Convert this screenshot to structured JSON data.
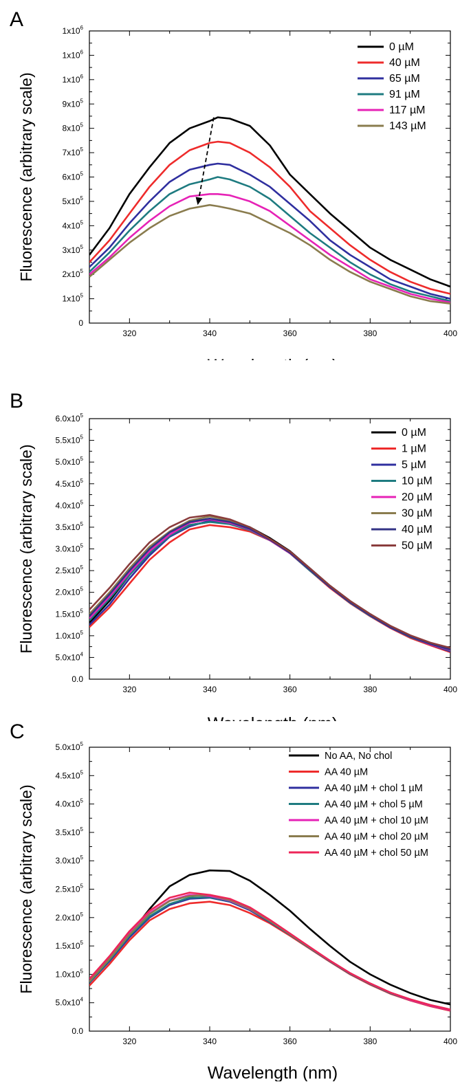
{
  "colors": {
    "black": "#000000",
    "red": "#ee2b2b",
    "blue": "#2f2f9f",
    "teal": "#1e7b80",
    "magenta": "#e622b6",
    "olive": "#8a7c4e",
    "navy": "#333385",
    "brown": "#8a3c3c",
    "crimson": "#ee2558"
  },
  "chart_data": [
    {
      "panel": "A",
      "type": "line",
      "xlabel": "Wavelength (nm)",
      "ylabel": "Fluorescence (arbitrary scale)",
      "xlim": [
        310,
        400
      ],
      "ylim": [
        0,
        1200000
      ],
      "xticks": [
        320,
        340,
        360,
        380,
        400
      ],
      "yticks": [
        {
          "value": 0,
          "mant": "0",
          "exp": ""
        },
        {
          "value": 100000,
          "mant": "1x10",
          "exp": "5"
        },
        {
          "value": 200000,
          "mant": "2x10",
          "exp": "5"
        },
        {
          "value": 300000,
          "mant": "3x10",
          "exp": "5"
        },
        {
          "value": 400000,
          "mant": "4x10",
          "exp": "5"
        },
        {
          "value": 500000,
          "mant": "5x10",
          "exp": "5"
        },
        {
          "value": 600000,
          "mant": "6x10",
          "exp": "5"
        },
        {
          "value": 700000,
          "mant": "7x10",
          "exp": "5"
        },
        {
          "value": 800000,
          "mant": "8x10",
          "exp": "5"
        },
        {
          "value": 900000,
          "mant": "9x10",
          "exp": "5"
        },
        {
          "value": 1000000,
          "mant": "1x10",
          "exp": "6"
        },
        {
          "value": 1100000,
          "mant": "1x10",
          "exp": "6"
        },
        {
          "value": 1200000,
          "mant": "1x10",
          "exp": "6"
        }
      ],
      "legend_position": "top-right",
      "annotation": {
        "type": "dashed-arrow",
        "from": [
          341,
          845000
        ],
        "to": [
          337,
          485000
        ]
      },
      "x": [
        310,
        315,
        320,
        325,
        330,
        335,
        340,
        342,
        345,
        350,
        355,
        360,
        365,
        370,
        375,
        380,
        385,
        390,
        395,
        400
      ],
      "series": [
        {
          "name": "0 µM",
          "color": "black",
          "values": [
            280000,
            390000,
            530000,
            640000,
            740000,
            800000,
            830000,
            845000,
            840000,
            810000,
            730000,
            610000,
            530000,
            450000,
            380000,
            310000,
            260000,
            220000,
            180000,
            150000
          ]
        },
        {
          "name": "40 µM",
          "color": "red",
          "values": [
            250000,
            340000,
            450000,
            560000,
            650000,
            710000,
            740000,
            745000,
            740000,
            700000,
            640000,
            560000,
            460000,
            390000,
            320000,
            260000,
            210000,
            170000,
            140000,
            120000
          ]
        },
        {
          "name": "65 µM",
          "color": "blue",
          "values": [
            230000,
            310000,
            410000,
            500000,
            580000,
            630000,
            650000,
            655000,
            650000,
            610000,
            560000,
            490000,
            420000,
            340000,
            280000,
            230000,
            180000,
            150000,
            120000,
            100000
          ]
        },
        {
          "name": "91 µM",
          "color": "teal",
          "values": [
            210000,
            290000,
            380000,
            460000,
            530000,
            570000,
            590000,
            600000,
            590000,
            560000,
            510000,
            440000,
            370000,
            310000,
            250000,
            200000,
            160000,
            130000,
            110000,
            90000
          ]
        },
        {
          "name": "117 µM",
          "color": "magenta",
          "values": [
            200000,
            270000,
            350000,
            420000,
            480000,
            520000,
            530000,
            530000,
            525000,
            500000,
            460000,
            400000,
            340000,
            280000,
            230000,
            180000,
            150000,
            120000,
            100000,
            85000
          ]
        },
        {
          "name": "143 µM",
          "color": "olive",
          "values": [
            190000,
            260000,
            330000,
            390000,
            440000,
            470000,
            485000,
            480000,
            470000,
            450000,
            410000,
            370000,
            320000,
            260000,
            210000,
            170000,
            140000,
            110000,
            90000,
            80000
          ]
        }
      ]
    },
    {
      "panel": "B",
      "type": "line",
      "xlabel": "Wavelength (nm)",
      "ylabel": "Fluorescence (arbitrary scale)",
      "xlim": [
        310,
        400
      ],
      "ylim": [
        0,
        600000
      ],
      "xticks": [
        320,
        340,
        360,
        380,
        400
      ],
      "yticks": [
        {
          "value": 0,
          "mant": "0.0",
          "exp": ""
        },
        {
          "value": 50000,
          "mant": "5.0x10",
          "exp": "4"
        },
        {
          "value": 100000,
          "mant": "1.0x10",
          "exp": "5"
        },
        {
          "value": 150000,
          "mant": "1.5x10",
          "exp": "5"
        },
        {
          "value": 200000,
          "mant": "2.0x10",
          "exp": "5"
        },
        {
          "value": 250000,
          "mant": "2.5x10",
          "exp": "5"
        },
        {
          "value": 300000,
          "mant": "3.0x10",
          "exp": "5"
        },
        {
          "value": 350000,
          "mant": "3.5x10",
          "exp": "5"
        },
        {
          "value": 400000,
          "mant": "4.0x10",
          "exp": "5"
        },
        {
          "value": 450000,
          "mant": "4.5x10",
          "exp": "5"
        },
        {
          "value": 500000,
          "mant": "5.0x10",
          "exp": "5"
        },
        {
          "value": 550000,
          "mant": "5.5x10",
          "exp": "5"
        },
        {
          "value": 600000,
          "mant": "6.0x10",
          "exp": "5"
        }
      ],
      "legend_position": "top-right",
      "x": [
        310,
        315,
        320,
        325,
        330,
        335,
        340,
        345,
        350,
        355,
        360,
        365,
        370,
        375,
        380,
        385,
        390,
        395,
        400
      ],
      "series": [
        {
          "name": "0 µM",
          "color": "black",
          "values": [
            130000,
            180000,
            240000,
            290000,
            330000,
            355000,
            362000,
            365000,
            350000,
            325000,
            295000,
            255000,
            215000,
            180000,
            150000,
            122000,
            100000,
            82000,
            68000
          ]
        },
        {
          "name": "1 µM",
          "color": "red",
          "values": [
            120000,
            165000,
            220000,
            275000,
            315000,
            345000,
            355000,
            350000,
            340000,
            320000,
            290000,
            250000,
            210000,
            175000,
            145000,
            118000,
            95000,
            78000,
            62000
          ]
        },
        {
          "name": "5 µM",
          "color": "blue",
          "values": [
            125000,
            172000,
            232000,
            285000,
            328000,
            352000,
            365000,
            358000,
            345000,
            320000,
            292000,
            252000,
            212000,
            176000,
            146000,
            119000,
            97000,
            80000,
            64000
          ]
        },
        {
          "name": "10 µM",
          "color": "teal",
          "values": [
            135000,
            185000,
            240000,
            290000,
            330000,
            355000,
            362000,
            357000,
            343000,
            320000,
            290000,
            250000,
            212000,
            176000,
            146000,
            120000,
            97000,
            80000,
            66000
          ]
        },
        {
          "name": "20 µM",
          "color": "magenta",
          "values": [
            140000,
            190000,
            245000,
            295000,
            333000,
            360000,
            368000,
            360000,
            345000,
            320000,
            290000,
            252000,
            212000,
            177000,
            147000,
            120000,
            98000,
            80000,
            67000
          ]
        },
        {
          "name": "30 µM",
          "color": "olive",
          "values": [
            150000,
            200000,
            255000,
            305000,
            340000,
            365000,
            375000,
            365000,
            348000,
            322000,
            292000,
            253000,
            213000,
            178000,
            148000,
            121000,
            99000,
            82000,
            70000
          ]
        },
        {
          "name": "40 µM",
          "color": "navy",
          "values": [
            145000,
            195000,
            250000,
            300000,
            338000,
            362000,
            370000,
            362000,
            346000,
            321000,
            291000,
            252000,
            212000,
            177000,
            147000,
            120000,
            98000,
            81000,
            68000
          ]
        },
        {
          "name": "50 µM",
          "color": "brown",
          "values": [
            160000,
            210000,
            265000,
            315000,
            350000,
            372000,
            378000,
            368000,
            350000,
            323000,
            294000,
            255000,
            215000,
            180000,
            150000,
            123000,
            101000,
            84000,
            72000
          ]
        }
      ]
    },
    {
      "panel": "C",
      "type": "line",
      "xlabel": "Wavelength (nm)",
      "ylabel": "Fluorescence (arbitrary scale)",
      "xlim": [
        310,
        400
      ],
      "ylim": [
        0,
        500000
      ],
      "xticks": [
        320,
        340,
        360,
        380,
        400
      ],
      "yticks": [
        {
          "value": 0,
          "mant": "0.0",
          "exp": ""
        },
        {
          "value": 50000,
          "mant": "5.0x10",
          "exp": "4"
        },
        {
          "value": 100000,
          "mant": "1.0x10",
          "exp": "5"
        },
        {
          "value": 150000,
          "mant": "1.5x10",
          "exp": "5"
        },
        {
          "value": 200000,
          "mant": "2.0x10",
          "exp": "5"
        },
        {
          "value": 250000,
          "mant": "2.5x10",
          "exp": "5"
        },
        {
          "value": 300000,
          "mant": "3.0x10",
          "exp": "5"
        },
        {
          "value": 350000,
          "mant": "3.5x10",
          "exp": "5"
        },
        {
          "value": 400000,
          "mant": "4.0x10",
          "exp": "5"
        },
        {
          "value": 450000,
          "mant": "4.5x10",
          "exp": "5"
        },
        {
          "value": 500000,
          "mant": "5.0x10",
          "exp": "5"
        }
      ],
      "legend_position": "top-right",
      "x": [
        310,
        315,
        320,
        325,
        330,
        335,
        340,
        345,
        350,
        355,
        360,
        365,
        370,
        375,
        380,
        385,
        390,
        395,
        400
      ],
      "series": [
        {
          "name": "No AA, No chol",
          "color": "black",
          "values": [
            85000,
            125000,
            170000,
            215000,
            255000,
            275000,
            283000,
            282000,
            265000,
            240000,
            212000,
            180000,
            150000,
            122000,
            100000,
            82000,
            67000,
            55000,
            47000
          ]
        },
        {
          "name": "AA 40 µM",
          "color": "red",
          "values": [
            80000,
            118000,
            160000,
            195000,
            215000,
            225000,
            228000,
            222000,
            208000,
            190000,
            168000,
            145000,
            122000,
            100000,
            82000,
            66000,
            54000,
            44000,
            36000
          ]
        },
        {
          "name": "AA 40 µM + chol 1 µM",
          "color": "blue",
          "values": [
            85000,
            123000,
            165000,
            200000,
            222000,
            233000,
            235000,
            228000,
            213000,
            192000,
            170000,
            146000,
            123000,
            101000,
            83000,
            67000,
            55000,
            45000,
            37000
          ]
        },
        {
          "name": "AA 40 µM + chol 5 µM",
          "color": "teal",
          "values": [
            86000,
            125000,
            168000,
            202000,
            224000,
            235000,
            236000,
            229000,
            214000,
            193000,
            170000,
            146000,
            123000,
            101000,
            83000,
            67000,
            55000,
            45000,
            37000
          ]
        },
        {
          "name": "AA 40 µM + chol 10 µM",
          "color": "magenta",
          "values": [
            88000,
            128000,
            172000,
            208000,
            230000,
            240000,
            238000,
            230000,
            215000,
            194000,
            171000,
            147000,
            124000,
            102000,
            84000,
            68000,
            55000,
            45000,
            37000
          ]
        },
        {
          "name": "AA 40 µM + chol 20 µM",
          "color": "olive",
          "values": [
            87000,
            127000,
            170000,
            206000,
            229000,
            238000,
            240000,
            231000,
            216000,
            194000,
            171000,
            147000,
            124000,
            102000,
            84000,
            68000,
            56000,
            46000,
            38000
          ]
        },
        {
          "name": "AA 40 µM + chol 50 µM",
          "color": "crimson",
          "values": [
            92000,
            132000,
            176000,
            212000,
            235000,
            244000,
            240000,
            233000,
            218000,
            196000,
            172000,
            148000,
            124000,
            102000,
            84000,
            68000,
            56000,
            46000,
            38000
          ]
        }
      ]
    }
  ]
}
